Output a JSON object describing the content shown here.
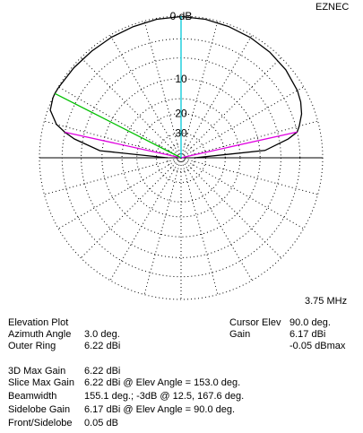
{
  "app_label": "EZNEC",
  "frequency": "3.75 MHz",
  "ring_labels": [
    "0 dB",
    "10",
    "20",
    "30"
  ],
  "info": {
    "plot_type": "Elevation Plot",
    "azimuth_angle_label": "Azimuth Angle",
    "azimuth_angle_value": "3.0 deg.",
    "outer_ring_label": "Outer Ring",
    "outer_ring_value": "6.22 dBi",
    "max_gain_3d_label": "3D Max Gain",
    "max_gain_3d_value": "6.22 dBi",
    "slice_max_gain_label": "Slice Max Gain",
    "slice_max_gain_value": "6.22 dBi @ Elev Angle = 153.0 deg.",
    "beamwidth_label": "Beamwidth",
    "beamwidth_value": "155.1 deg.; -3dB @ 12.5, 167.6 deg.",
    "sidelobe_gain_label": "Sidelobe Gain",
    "sidelobe_gain_value": "6.17 dBi @ Elev Angle = 90.0 deg.",
    "front_sidelobe_label": "Front/Sidelobe",
    "front_sidelobe_value": "0.05 dB"
  },
  "cursor": {
    "elev_label": "Cursor Elev",
    "elev_value": "90.0 deg.",
    "gain_label": "Gain",
    "gain_value": "6.17 dBi",
    "dbmax_value": "-0.05 dBmax"
  },
  "colors": {
    "pattern": "#000000",
    "cursor_line": "#00c8d8",
    "max_gain_line": "#00c000",
    "beamwidth_lines": "#e000e0",
    "grid": "#000000"
  },
  "chart_data": {
    "type": "polar",
    "title": "Elevation Plot",
    "frequency": "3.75 MHz",
    "outer_ring_dBi": 6.22,
    "ring_labels": [
      "0 dB",
      "10",
      "20",
      "30"
    ],
    "elevation_deg": [
      0,
      5,
      10,
      12.5,
      15,
      20,
      25,
      30,
      40,
      50,
      60,
      70,
      80,
      90,
      100,
      110,
      120,
      130,
      140,
      150,
      153,
      155,
      160,
      165,
      167.6,
      170,
      175,
      180
    ],
    "gain_dBmax": [
      -40,
      -8.9,
      -4.5,
      -3,
      -2.5,
      -1.7,
      -1.2,
      -0.9,
      -0.6,
      -0.45,
      -0.35,
      -0.25,
      -0.12,
      -0.05,
      -0.12,
      -0.25,
      -0.3,
      -0.3,
      -0.2,
      -0.05,
      0,
      -0.02,
      -0.3,
      -1.6,
      -3,
      -4.6,
      -9.5,
      -40
    ],
    "cursor_elev_deg": 90.0,
    "max_gain_elev_deg": 153.0,
    "beamwidth_3db_deg": [
      12.5,
      167.6
    ]
  }
}
